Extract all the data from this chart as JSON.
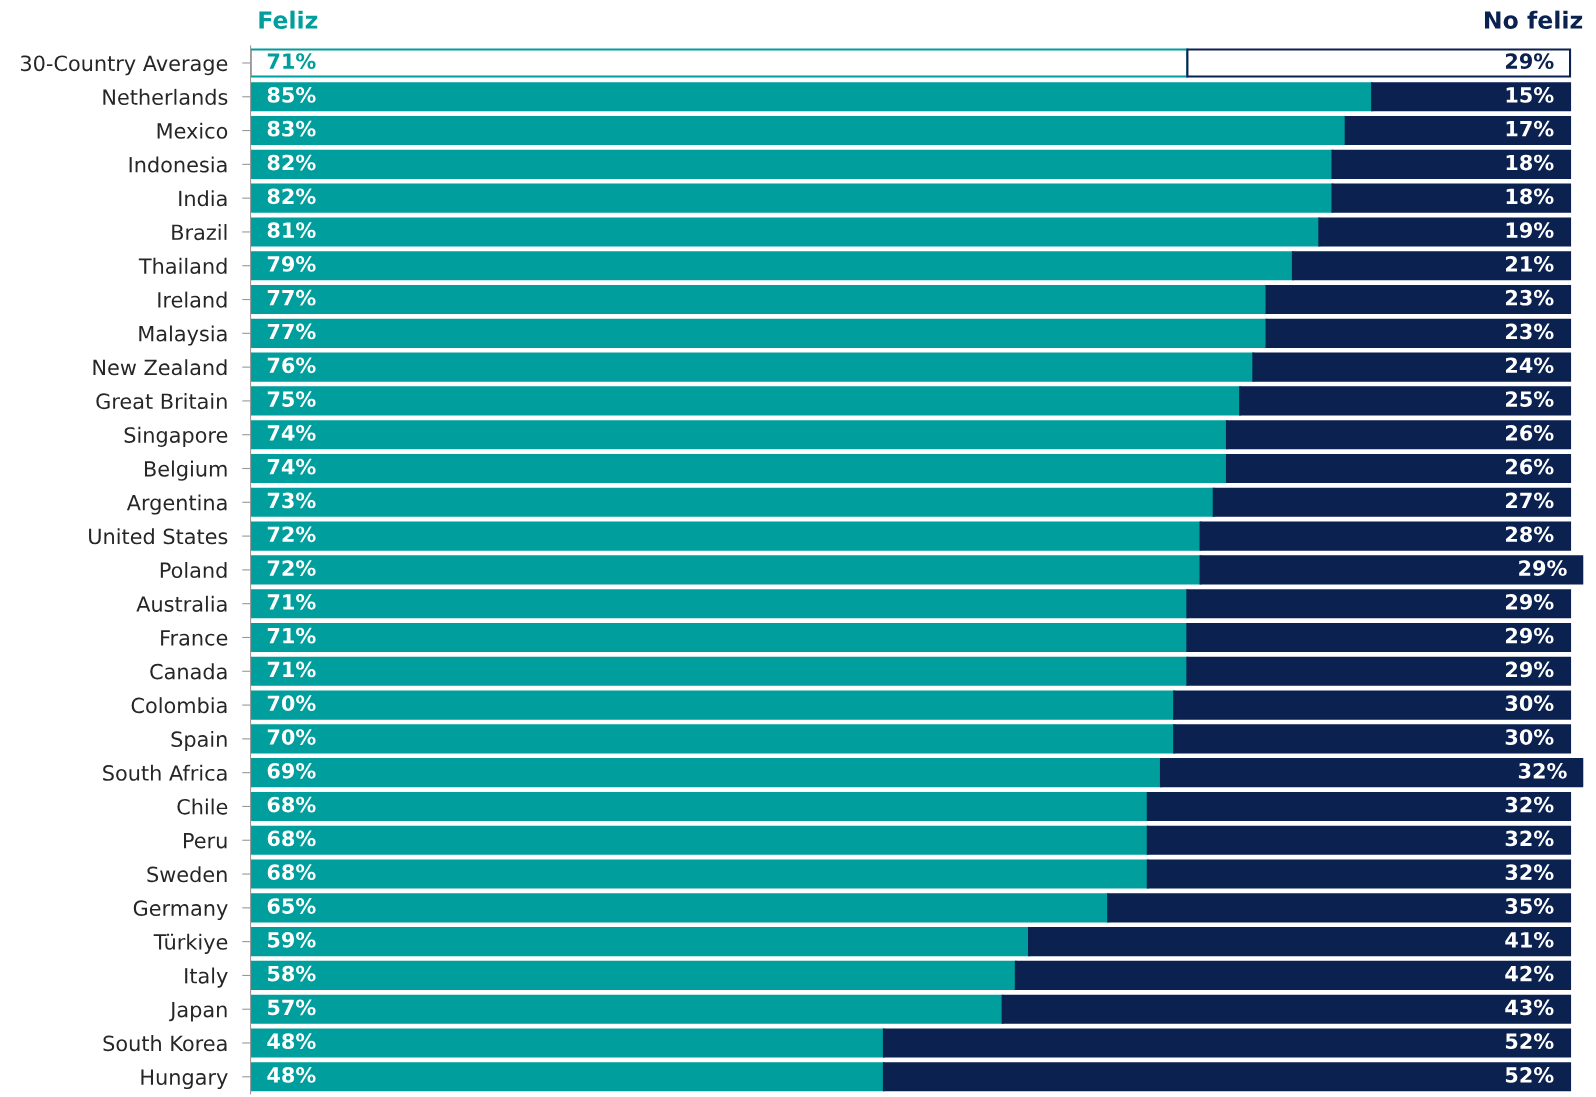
{
  "chart_data": {
    "type": "bar",
    "orientation": "horizontal",
    "stacked": true,
    "legend": "top",
    "grid": false,
    "tick_labels": "y",
    "categories": [
      "30-Country Average",
      "Netherlands",
      "Mexico",
      "Indonesia",
      "India",
      "Brazil",
      "Thailand",
      "Ireland",
      "Malaysia",
      "New Zealand",
      "Great Britain",
      "Singapore",
      "Belgium",
      "Argentina",
      "United States",
      "Poland",
      "Australia",
      "France",
      "Canada",
      "Colombia",
      "Spain",
      "South Africa",
      "Chile",
      "Peru",
      "Sweden",
      "Germany",
      "Türkiye",
      "Italy",
      "Japan",
      "South Korea",
      "Hungary"
    ],
    "series": [
      {
        "name": "Feliz",
        "color": "#009e9c",
        "colors": [
          "#ffffff",
          "#009e9c",
          "#009e9c",
          "#009e9c",
          "#009e9c",
          "#009e9c",
          "#009e9c",
          "#009e9c",
          "#009e9c",
          "#009e9c",
          "#009e9c",
          "#009e9c",
          "#009e9c",
          "#009e9c",
          "#009e9c",
          "#009e9c",
          "#009e9c",
          "#009e9c",
          "#009e9c",
          "#009e9c",
          "#009e9c",
          "#009e9c",
          "#009e9c",
          "#009e9c",
          "#009e9c",
          "#009e9c",
          "#009e9c",
          "#009e9c",
          "#009e9c",
          "#009e9c",
          "#009e9c"
        ],
        "values": [
          71,
          85,
          83,
          82,
          82,
          81,
          79,
          77,
          77,
          76,
          75,
          74,
          74,
          73,
          72,
          72,
          71,
          71,
          71,
          70,
          70,
          69,
          68,
          68,
          68,
          65,
          59,
          58,
          57,
          48,
          48
        ],
        "value_labels": [
          "71%",
          "85%",
          "83%",
          "82%",
          "82%",
          "81%",
          "79%",
          "77%",
          "77%",
          "76%",
          "75%",
          "74%",
          "74%",
          "73%",
          "72%",
          "72%",
          "71%",
          "71%",
          "71%",
          "70%",
          "70%",
          "69%",
          "68%",
          "68%",
          "68%",
          "65%",
          "59%",
          "58%",
          "57%",
          "48%",
          "48%"
        ]
      },
      {
        "name": "No feliz",
        "color": "#0b2150",
        "colors": [
          "#ffffff",
          "#0b2150",
          "#0b2150",
          "#0b2150",
          "#0b2150",
          "#0b2150",
          "#0b2150",
          "#0b2150",
          "#0b2150",
          "#0b2150",
          "#0b2150",
          "#0b2150",
          "#0b2150",
          "#0b2150",
          "#0b2150",
          "#0b2150",
          "#0b2150",
          "#0b2150",
          "#0b2150",
          "#0b2150",
          "#0b2150",
          "#0b2150",
          "#0b2150",
          "#0b2150",
          "#0b2150",
          "#0b2150",
          "#0b2150",
          "#0b2150",
          "#0b2150",
          "#0b2150",
          "#0b2150"
        ],
        "values": [
          29,
          15,
          17,
          18,
          18,
          19,
          21,
          23,
          23,
          24,
          25,
          26,
          26,
          27,
          28,
          29,
          29,
          29,
          29,
          30,
          30,
          32,
          32,
          32,
          32,
          35,
          41,
          42,
          43,
          52,
          52
        ],
        "value_labels": [
          "29%",
          "15%",
          "17%",
          "18%",
          "18%",
          "19%",
          "21%",
          "23%",
          "23%",
          "24%",
          "25%",
          "26%",
          "26%",
          "27%",
          "28%",
          "29%",
          "29%",
          "29%",
          "29%",
          "30%",
          "30%",
          "32%",
          "32%",
          "32%",
          "32%",
          "35%",
          "41%",
          "42%",
          "43%",
          "52%",
          "52%"
        ]
      }
    ]
  }
}
